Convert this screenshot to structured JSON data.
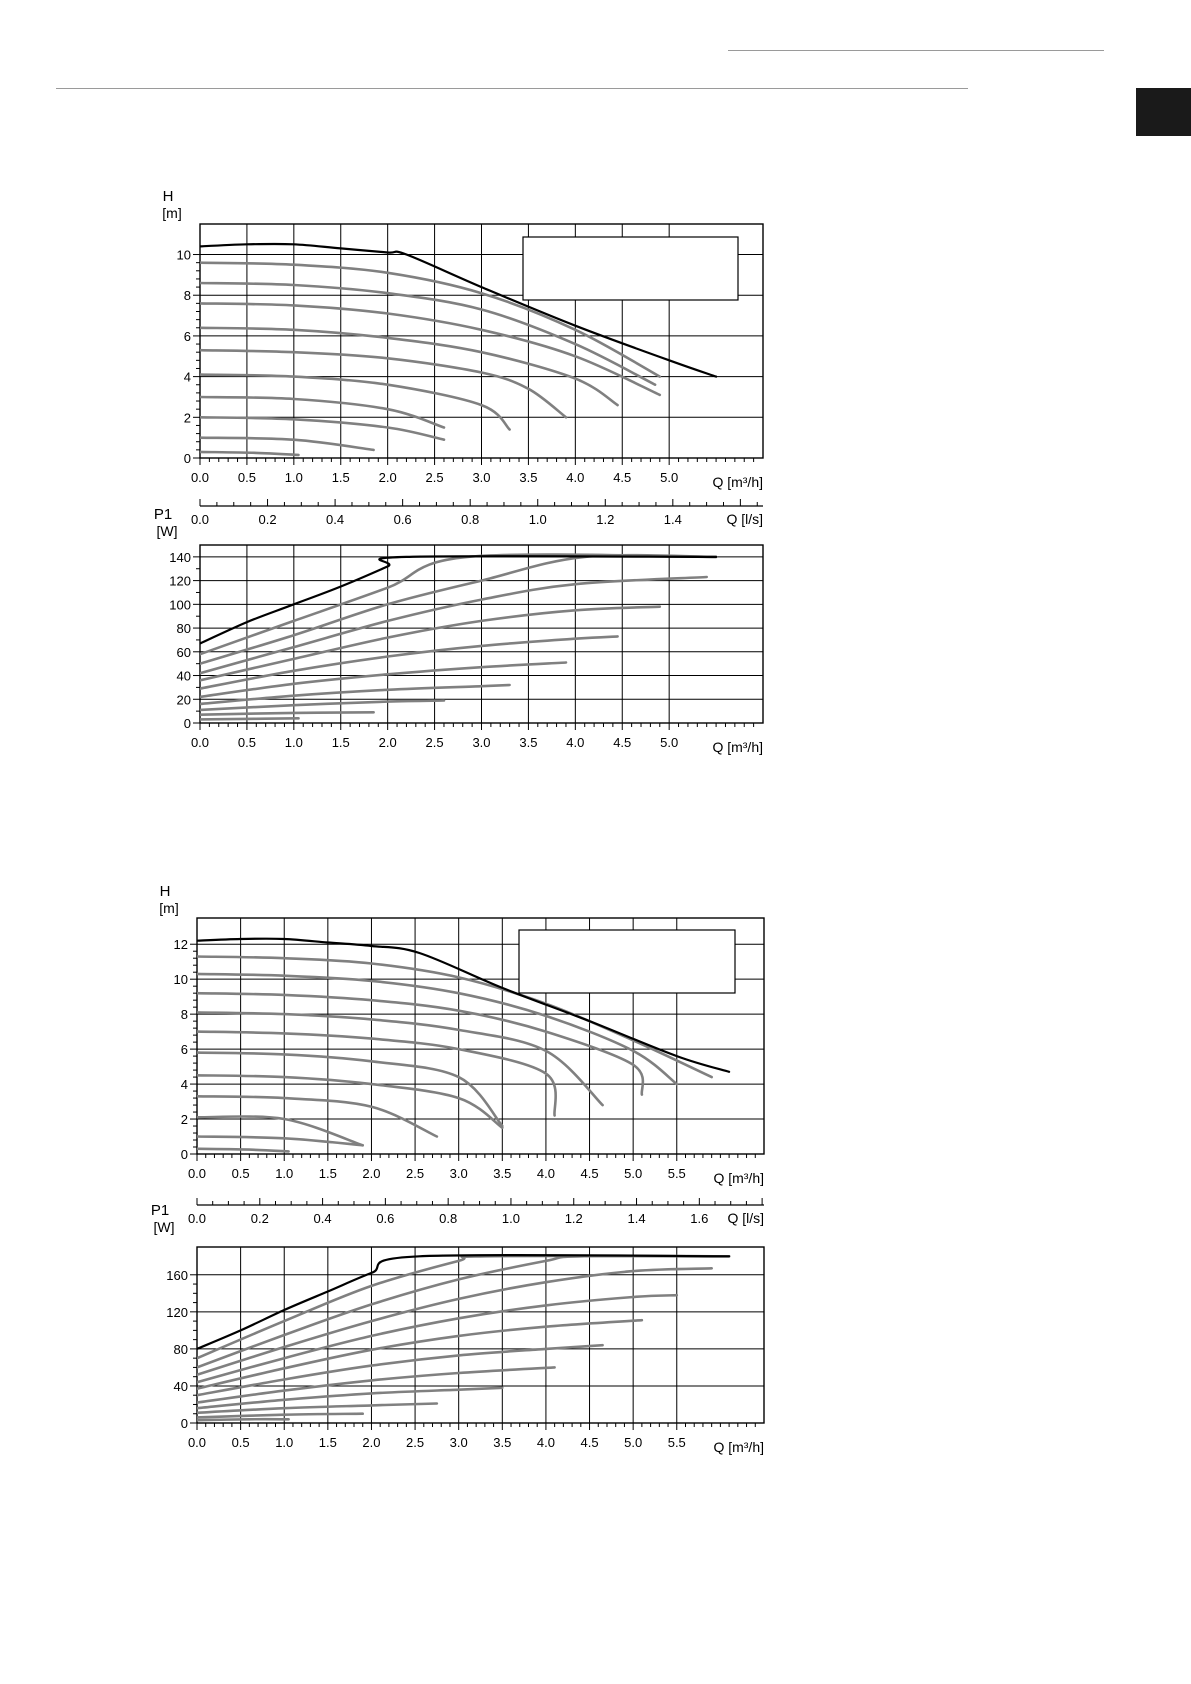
{
  "page": {
    "colors": {
      "primary_curve": "#000000",
      "speed_curves": "#808080",
      "grid": "#000000",
      "tab": "#1a1a1a"
    }
  },
  "chart_data": [
    {
      "id": "pump-1",
      "type": "line",
      "head": {
        "ylabel": "H",
        "yunit": "[m]",
        "ylim": [
          0,
          11.5
        ],
        "yticks": [
          0,
          2,
          4,
          6,
          8,
          10
        ],
        "xlim": [
          0,
          6
        ],
        "xticks": [
          0,
          0.5,
          1,
          1.5,
          2,
          2.5,
          3,
          3.5,
          4,
          4.5,
          5
        ],
        "xtick_labels": [
          "0.0",
          "0.5",
          "1.0",
          "1.5",
          "2.0",
          "2.5",
          "3.0",
          "3.5",
          "4.0",
          "4.5",
          "5.0"
        ],
        "xlabel": "Q [m³/h]",
        "max_curve": {
          "x": [
            0,
            0.5,
            1.0,
            1.5,
            2.0,
            2.2,
            3.0,
            4.0,
            5.0,
            5.5
          ],
          "y": [
            10.4,
            10.5,
            10.5,
            10.3,
            10.1,
            10.0,
            8.4,
            6.5,
            4.8,
            4.0
          ]
        },
        "speed_curves": [
          {
            "x": [
              0,
              1,
              2,
              3,
              4.0,
              4.9
            ],
            "y": [
              9.6,
              9.5,
              9.1,
              8.1,
              6.3,
              4.0
            ]
          },
          {
            "x": [
              0,
              1,
              2,
              3,
              4.0,
              4.85
            ],
            "y": [
              8.6,
              8.5,
              8.1,
              7.3,
              5.6,
              3.6
            ]
          },
          {
            "x": [
              0,
              1,
              2,
              3,
              4.0,
              4.9
            ],
            "y": [
              7.6,
              7.5,
              7.1,
              6.3,
              5.0,
              3.1
            ]
          },
          {
            "x": [
              0,
              1,
              2,
              3,
              4.0,
              4.45
            ],
            "y": [
              6.4,
              6.3,
              5.9,
              5.2,
              3.9,
              2.6
            ]
          },
          {
            "x": [
              0,
              1,
              2,
              3,
              3.5,
              3.9
            ],
            "y": [
              5.3,
              5.2,
              4.9,
              4.2,
              3.4,
              2.0
            ]
          },
          {
            "x": [
              0,
              1,
              2,
              3,
              3.3
            ],
            "y": [
              4.1,
              4.0,
              3.6,
              2.6,
              1.4
            ]
          },
          {
            "x": [
              0,
              1,
              2,
              2.6
            ],
            "y": [
              3.0,
              2.9,
              2.4,
              1.5
            ]
          },
          {
            "x": [
              0,
              1,
              2,
              2.6
            ],
            "y": [
              2.0,
              1.9,
              1.5,
              0.9
            ]
          },
          {
            "x": [
              0,
              1,
              1.85
            ],
            "y": [
              1.0,
              0.9,
              0.4
            ]
          },
          {
            "x": [
              0,
              0.6,
              1.05
            ],
            "y": [
              0.3,
              0.25,
              0.15
            ]
          }
        ]
      },
      "flow_ls_axis": {
        "xlim": [
          0,
          1.667
        ],
        "xticks": [
          0,
          0.2,
          0.4,
          0.6,
          0.8,
          1.0,
          1.2,
          1.4
        ],
        "xtick_labels": [
          "0.0",
          "0.2",
          "0.4",
          "0.6",
          "0.8",
          "1.0",
          "1.2",
          "1.4"
        ],
        "xlabel": "Q [l/s]"
      },
      "power": {
        "ylabel": "P1",
        "yunit": "[W]",
        "ylim": [
          0,
          150
        ],
        "yticks": [
          0,
          20,
          40,
          60,
          80,
          100,
          120,
          140
        ],
        "xlim": [
          0,
          6
        ],
        "xticks": [
          0,
          0.5,
          1,
          1.5,
          2,
          2.5,
          3,
          3.5,
          4,
          4.5,
          5
        ],
        "xtick_labels": [
          "0.0",
          "0.5",
          "1.0",
          "1.5",
          "2.0",
          "2.5",
          "3.0",
          "3.5",
          "4.0",
          "4.5",
          "5.0"
        ],
        "xlabel": "Q [m³/h]",
        "max_curve": {
          "x": [
            0,
            0.5,
            1.0,
            1.5,
            2.0,
            2.2,
            5.5
          ],
          "y": [
            67,
            85,
            100,
            115,
            132,
            140,
            140
          ]
        },
        "speed_curves": [
          {
            "x": [
              0,
              1,
              2,
              2.85,
              5.5
            ],
            "y": [
              58,
              86,
              114,
              140,
              140
            ]
          },
          {
            "x": [
              0,
              1,
              2,
              3,
              4.1,
              5.5
            ],
            "y": [
              50,
              74,
              100,
              120,
              140,
              140
            ]
          },
          {
            "x": [
              0,
              1,
              2,
              3,
              4,
              5.4
            ],
            "y": [
              42,
              64,
              86,
              104,
              117,
              123
            ]
          },
          {
            "x": [
              0,
              1,
              2,
              3,
              4,
              4.9
            ],
            "y": [
              36,
              54,
              72,
              86,
              95,
              98
            ]
          },
          {
            "x": [
              0,
              1,
              2,
              3,
              4,
              4.45
            ],
            "y": [
              29,
              44,
              56,
              65,
              71,
              73
            ]
          },
          {
            "x": [
              0,
              1,
              2,
              3,
              3.9
            ],
            "y": [
              22,
              33,
              41,
              47,
              51
            ]
          },
          {
            "x": [
              0,
              1,
              2,
              3,
              3.3
            ],
            "y": [
              16,
              23,
              28,
              31,
              32
            ]
          },
          {
            "x": [
              0,
              1,
              2,
              2.6
            ],
            "y": [
              11,
              15,
              18,
              19
            ]
          },
          {
            "x": [
              0,
              1,
              1.85
            ],
            "y": [
              7,
              8.5,
              9
            ]
          },
          {
            "x": [
              0,
              0.6,
              1.05
            ],
            "y": [
              3,
              3.5,
              4
            ]
          }
        ]
      }
    },
    {
      "id": "pump-2",
      "type": "line",
      "head": {
        "ylabel": "H",
        "yunit": "[m]",
        "ylim": [
          0,
          13.5
        ],
        "yticks": [
          0,
          2,
          4,
          6,
          8,
          10,
          12
        ],
        "xlim": [
          0,
          6.5
        ],
        "xticks": [
          0,
          0.5,
          1,
          1.5,
          2,
          2.5,
          3,
          3.5,
          4,
          4.5,
          5,
          5.5
        ],
        "xtick_labels": [
          "0.0",
          "0.5",
          "1.0",
          "1.5",
          "2.0",
          "2.5",
          "3.0",
          "3.5",
          "4.0",
          "4.5",
          "5.0",
          "5.5"
        ],
        "xlabel": "Q [m³/h]",
        "max_curve": {
          "x": [
            0,
            0.5,
            1.0,
            1.5,
            2.0,
            2.55,
            3.5,
            4.5,
            5.5,
            6.1
          ],
          "y": [
            12.2,
            12.3,
            12.3,
            12.1,
            11.9,
            11.5,
            9.5,
            7.6,
            5.6,
            4.7
          ]
        },
        "speed_curves": [
          {
            "x": [
              0,
              1,
              2,
              3,
              4,
              5,
              5.9
            ],
            "y": [
              11.3,
              11.2,
              10.9,
              10.1,
              8.6,
              6.5,
              4.4
            ]
          },
          {
            "x": [
              0,
              1,
              2,
              3,
              4,
              5,
              5.5
            ],
            "y": [
              10.3,
              10.2,
              9.9,
              9.2,
              7.9,
              5.9,
              4.0
            ]
          },
          {
            "x": [
              0,
              1,
              2,
              3,
              4,
              5,
              5.1
            ],
            "y": [
              9.2,
              9.1,
              8.8,
              8.2,
              7.0,
              5.1,
              3.4
            ]
          },
          {
            "x": [
              0,
              1,
              2,
              3,
              4,
              4.65
            ],
            "y": [
              8.1,
              8.0,
              7.7,
              7.1,
              5.9,
              2.8
            ]
          },
          {
            "x": [
              0,
              1,
              2,
              3,
              4,
              4.1
            ],
            "y": [
              7.0,
              6.9,
              6.6,
              6.0,
              4.6,
              2.2
            ]
          },
          {
            "x": [
              0,
              1,
              2,
              3,
              3.5
            ],
            "y": [
              5.8,
              5.7,
              5.3,
              4.4,
              1.6
            ]
          },
          {
            "x": [
              0,
              1,
              2,
              3,
              3.5
            ],
            "y": [
              4.5,
              4.4,
              4.0,
              3.2,
              1.5
            ]
          },
          {
            "x": [
              0,
              1,
              2,
              2.75
            ],
            "y": [
              3.3,
              3.2,
              2.7,
              1.0
            ]
          },
          {
            "x": [
              0,
              1,
              1.9
            ],
            "y": [
              2.1,
              2.0,
              0.5
            ]
          },
          {
            "x": [
              0,
              1,
              1.9
            ],
            "y": [
              1.0,
              0.9,
              0.5
            ]
          },
          {
            "x": [
              0,
              0.6,
              1.05
            ],
            "y": [
              0.3,
              0.25,
              0.15
            ]
          }
        ]
      },
      "flow_ls_axis": {
        "xlim": [
          0,
          1.806
        ],
        "xticks": [
          0,
          0.2,
          0.4,
          0.6,
          0.8,
          1.0,
          1.2,
          1.4,
          1.6
        ],
        "xtick_labels": [
          "0.0",
          "0.2",
          "0.4",
          "0.6",
          "0.8",
          "1.0",
          "1.2",
          "1.4",
          "1.6"
        ],
        "xlabel": "Q [l/s]"
      },
      "power": {
        "ylabel": "P1",
        "yunit": "[W]",
        "ylim": [
          0,
          190
        ],
        "yticks": [
          0,
          40,
          80,
          120,
          160
        ],
        "xlim": [
          0,
          6.5
        ],
        "xticks": [
          0,
          0.5,
          1,
          1.5,
          2,
          2.5,
          3,
          3.5,
          4,
          4.5,
          5,
          5.5
        ],
        "xtick_labels": [
          "0.0",
          "0.5",
          "1.0",
          "1.5",
          "2.0",
          "2.5",
          "3.0",
          "3.5",
          "4.0",
          "4.5",
          "5.0",
          "5.5"
        ],
        "xlabel": "Q [m³/h]",
        "max_curve": {
          "x": [
            0,
            0.5,
            1.0,
            1.5,
            2.0,
            2.55,
            6.1
          ],
          "y": [
            80,
            100,
            122,
            142,
            162,
            180,
            180
          ]
        },
        "speed_curves": [
          {
            "x": [
              0,
              1,
              2,
              3,
              3.3,
              6.1
            ],
            "y": [
              70,
              110,
              148,
              175,
              180,
              180
            ]
          },
          {
            "x": [
              0,
              1,
              2,
              3,
              4,
              4.4,
              6.1
            ],
            "y": [
              60,
              95,
              128,
              155,
              175,
              180,
              180
            ]
          },
          {
            "x": [
              0,
              1,
              2,
              3,
              4,
              5,
              5.9
            ],
            "y": [
              52,
              82,
              110,
              134,
              152,
              164,
              167
            ]
          },
          {
            "x": [
              0,
              1,
              2,
              3,
              4,
              5,
              5.5
            ],
            "y": [
              44,
              70,
              94,
              113,
              127,
              136,
              138
            ]
          },
          {
            "x": [
              0,
              1,
              2,
              3,
              4,
              5.1
            ],
            "y": [
              37,
              59,
              79,
              94,
              104,
              111
            ]
          },
          {
            "x": [
              0,
              1,
              2,
              3,
              4,
              4.65
            ],
            "y": [
              30,
              47,
              62,
              73,
              80,
              84
            ]
          },
          {
            "x": [
              0,
              1,
              2,
              3,
              4.1
            ],
            "y": [
              22,
              35,
              46,
              54,
              60
            ]
          },
          {
            "x": [
              0,
              1,
              2,
              3,
              3.5
            ],
            "y": [
              16,
              25,
              32,
              36,
              38
            ]
          },
          {
            "x": [
              0,
              1,
              2,
              2.75
            ],
            "y": [
              11,
              16,
              19,
              21
            ]
          },
          {
            "x": [
              0,
              1,
              1.9
            ],
            "y": [
              6,
              9,
              10
            ]
          },
          {
            "x": [
              0,
              0.6,
              1.05
            ],
            "y": [
              3,
              4,
              4
            ]
          }
        ]
      }
    }
  ]
}
